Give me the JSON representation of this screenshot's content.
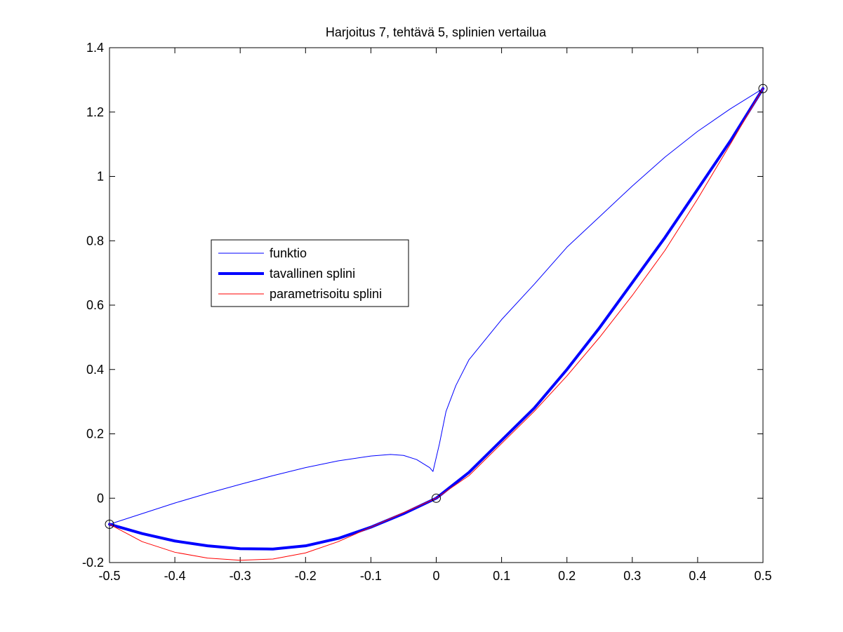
{
  "chart_data": {
    "type": "line",
    "title": "Harjoitus 7, tehtävä 5, splinien vertailua",
    "xlabel": "",
    "ylabel": "",
    "xlim": [
      -0.5,
      0.5
    ],
    "ylim": [
      -0.2,
      1.4
    ],
    "xticks": [
      -0.5,
      -0.4,
      -0.3,
      -0.2,
      -0.1,
      0,
      0.1,
      0.2,
      0.3,
      0.4,
      0.5
    ],
    "xtick_labels": [
      "-0.5",
      "-0.4",
      "-0.3",
      "-0.2",
      "-0.1",
      "0",
      "0.1",
      "0.2",
      "0.3",
      "0.4",
      "0.5"
    ],
    "yticks": [
      -0.2,
      0,
      0.2,
      0.4,
      0.6,
      0.8,
      1,
      1.2,
      1.4
    ],
    "ytick_labels": [
      "-0.2",
      "0",
      "0.2",
      "0.4",
      "0.6",
      "0.8",
      "1",
      "1.2",
      "1.4"
    ],
    "grid": false,
    "legend_position": "left-center",
    "series": [
      {
        "name": "funktio",
        "color": "#0000ff",
        "line_width": "thin",
        "x": [
          -0.5,
          -0.45,
          -0.4,
          -0.35,
          -0.3,
          -0.25,
          -0.2,
          -0.15,
          -0.1,
          -0.07,
          -0.05,
          -0.03,
          -0.01,
          -0.005,
          0.005,
          0.015,
          0.03,
          0.05,
          0.1,
          0.15,
          0.2,
          0.25,
          0.3,
          0.35,
          0.4,
          0.45,
          0.5
        ],
        "y": [
          -0.081,
          -0.048,
          -0.015,
          0.015,
          0.043,
          0.07,
          0.095,
          0.116,
          0.131,
          0.136,
          0.133,
          0.12,
          0.095,
          0.083,
          0.17,
          0.27,
          0.35,
          0.43,
          0.555,
          0.665,
          0.78,
          0.875,
          0.97,
          1.06,
          1.14,
          1.21,
          1.273
        ]
      },
      {
        "name": "tavallinen splini",
        "color": "#0000ff",
        "line_width": "thick",
        "x": [
          -0.5,
          -0.45,
          -0.4,
          -0.35,
          -0.3,
          -0.25,
          -0.2,
          -0.15,
          -0.1,
          -0.05,
          0,
          0.05,
          0.1,
          0.15,
          0.2,
          0.25,
          0.3,
          0.35,
          0.4,
          0.45,
          0.5
        ],
        "y": [
          -0.081,
          -0.11,
          -0.133,
          -0.148,
          -0.157,
          -0.158,
          -0.148,
          -0.125,
          -0.09,
          -0.048,
          0,
          0.08,
          0.18,
          0.28,
          0.4,
          0.53,
          0.67,
          0.81,
          0.96,
          1.11,
          1.273
        ]
      },
      {
        "name": "parametrisoitu splini",
        "color": "#ff0000",
        "line_width": "thin",
        "x": [
          -0.5,
          -0.45,
          -0.4,
          -0.35,
          -0.3,
          -0.25,
          -0.2,
          -0.15,
          -0.1,
          -0.05,
          0,
          0.05,
          0.1,
          0.15,
          0.2,
          0.25,
          0.3,
          0.35,
          0.4,
          0.45,
          0.5
        ],
        "y": [
          -0.081,
          -0.135,
          -0.168,
          -0.186,
          -0.193,
          -0.189,
          -0.17,
          -0.135,
          -0.09,
          -0.045,
          0,
          0.07,
          0.17,
          0.27,
          0.38,
          0.5,
          0.63,
          0.77,
          0.93,
          1.1,
          1.273
        ]
      }
    ],
    "markers": {
      "style": "open-circle",
      "color": "#000000",
      "points": [
        {
          "x": -0.5,
          "y": -0.081
        },
        {
          "x": 0,
          "y": 0
        },
        {
          "x": 0.5,
          "y": 1.273
        }
      ]
    }
  }
}
